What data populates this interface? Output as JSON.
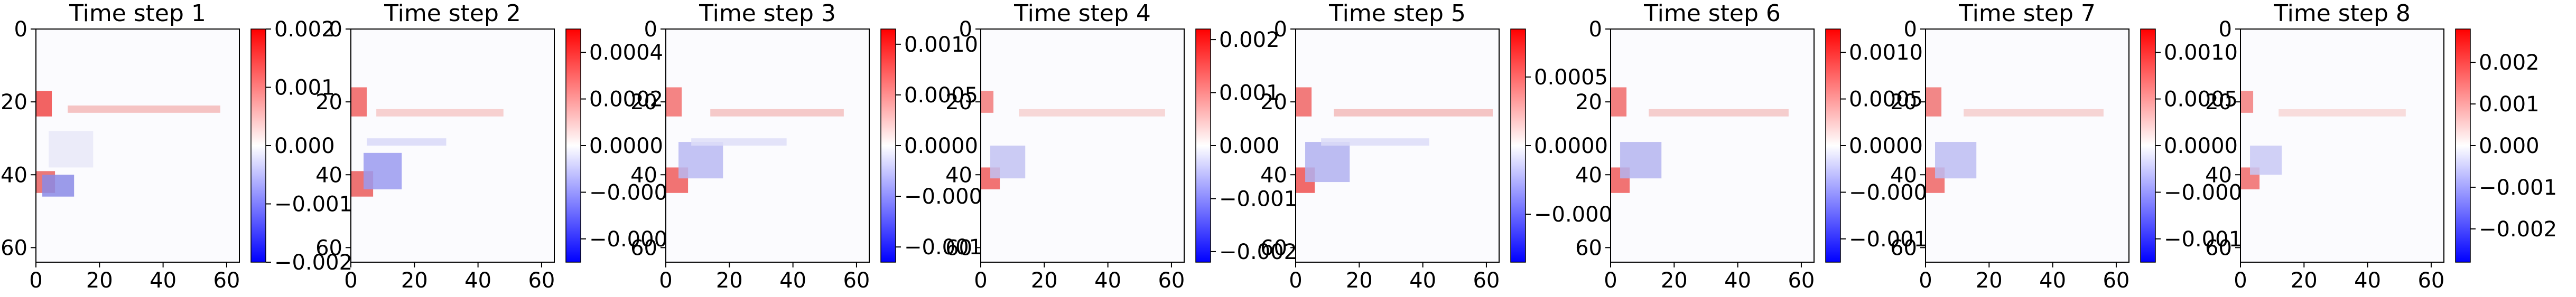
{
  "chart_data": [
    {
      "type": "heatmap",
      "title": "Time step 1",
      "xticks": [
        0,
        20,
        40,
        60
      ],
      "yticks": [
        0,
        20,
        40,
        60
      ],
      "xlim": [
        0,
        64
      ],
      "ylim": [
        64,
        0
      ],
      "colorbar": {
        "range": [
          -0.002,
          0.002
        ],
        "ticks": [
          -0.002,
          -0.001,
          0.0,
          0.001,
          0.002
        ],
        "tick_labels": [
          "−0.002",
          "−0.001",
          "0.000",
          "0.001",
          "0.002"
        ]
      },
      "colormap": [
        "#0000ff",
        "#ffffff",
        "#ff0000"
      ]
    },
    {
      "type": "heatmap",
      "title": "Time step 2",
      "xticks": [
        0,
        20,
        40,
        60
      ],
      "yticks": [
        0,
        20,
        40,
        60
      ],
      "xlim": [
        0,
        64
      ],
      "ylim": [
        64,
        0
      ],
      "colorbar": {
        "range": [
          -0.0005,
          0.0005
        ],
        "ticks": [
          -0.0004,
          -0.0002,
          0.0,
          0.0002,
          0.0004
        ],
        "tick_labels": [
          "−0.0004",
          "−0.0002",
          "0.0000",
          "0.0002",
          "0.0004"
        ]
      },
      "colormap": [
        "#0000ff",
        "#ffffff",
        "#ff0000"
      ]
    },
    {
      "type": "heatmap",
      "title": "Time step 3",
      "xticks": [
        0,
        20,
        40,
        60
      ],
      "yticks": [
        0,
        20,
        40,
        60
      ],
      "xlim": [
        0,
        64
      ],
      "ylim": [
        64,
        0
      ],
      "colorbar": {
        "range": [
          -0.00115,
          0.00115
        ],
        "ticks": [
          -0.001,
          -0.0005,
          0.0,
          0.0005,
          0.001
        ],
        "tick_labels": [
          "−0.0010",
          "−0.0005",
          "0.0000",
          "0.0005",
          "0.0010"
        ]
      },
      "colormap": [
        "#0000ff",
        "#ffffff",
        "#ff0000"
      ]
    },
    {
      "type": "heatmap",
      "title": "Time step 4",
      "xticks": [
        0,
        20,
        40,
        60
      ],
      "yticks": [
        0,
        20,
        40,
        60
      ],
      "xlim": [
        0,
        64
      ],
      "ylim": [
        64,
        0
      ],
      "colorbar": {
        "range": [
          -0.0022,
          0.0022
        ],
        "ticks": [
          -0.002,
          -0.001,
          0.0,
          0.001,
          0.002
        ],
        "tick_labels": [
          "−0.002",
          "−0.001",
          "0.000",
          "0.001",
          "0.002"
        ]
      },
      "colormap": [
        "#0000ff",
        "#ffffff",
        "#ff0000"
      ]
    },
    {
      "type": "heatmap",
      "title": "Time step 5",
      "xticks": [
        0,
        20,
        40,
        60
      ],
      "yticks": [
        0,
        20,
        40,
        60
      ],
      "xlim": [
        0,
        64
      ],
      "ylim": [
        64,
        0
      ],
      "colorbar": {
        "range": [
          -0.00085,
          0.00085
        ],
        "ticks": [
          -0.0005,
          0.0,
          0.0005
        ],
        "tick_labels": [
          "−0.0005",
          "0.0000",
          "0.0005"
        ]
      },
      "colormap": [
        "#0000ff",
        "#ffffff",
        "#ff0000"
      ]
    },
    {
      "type": "heatmap",
      "title": "Time step 6",
      "xticks": [
        0,
        20,
        40,
        60
      ],
      "yticks": [
        0,
        20,
        40,
        60
      ],
      "xlim": [
        0,
        64
      ],
      "ylim": [
        64,
        0
      ],
      "colorbar": {
        "range": [
          -0.00125,
          0.00125
        ],
        "ticks": [
          -0.001,
          -0.0005,
          0.0,
          0.0005,
          0.001
        ],
        "tick_labels": [
          "−0.0010",
          "−0.0005",
          "0.0000",
          "0.0005",
          "0.0010"
        ]
      },
      "colormap": [
        "#0000ff",
        "#ffffff",
        "#ff0000"
      ]
    },
    {
      "type": "heatmap",
      "title": "Time step 7",
      "xticks": [
        0,
        20,
        40,
        60
      ],
      "yticks": [
        0,
        20,
        40,
        60
      ],
      "xlim": [
        0,
        64
      ],
      "ylim": [
        64,
        0
      ],
      "colorbar": {
        "range": [
          -0.00125,
          0.00125
        ],
        "ticks": [
          -0.001,
          -0.0005,
          0.0,
          0.0005,
          0.001
        ],
        "tick_labels": [
          "−0.0010",
          "−0.0005",
          "0.0000",
          "0.0005",
          "0.0010"
        ]
      },
      "colormap": [
        "#0000ff",
        "#ffffff",
        "#ff0000"
      ]
    },
    {
      "type": "heatmap",
      "title": "Time step 8",
      "xticks": [
        0,
        20,
        40,
        60
      ],
      "yticks": [
        0,
        20,
        40,
        60
      ],
      "xlim": [
        0,
        64
      ],
      "ylim": [
        64,
        0
      ],
      "colorbar": {
        "range": [
          -0.0028,
          0.0028
        ],
        "ticks": [
          -0.002,
          -0.001,
          0.0,
          0.001,
          0.002
        ],
        "tick_labels": [
          "−0.002",
          "−0.001",
          "0.000",
          "0.001",
          "0.002"
        ]
      },
      "colormap": [
        "#0000ff",
        "#ffffff",
        "#ff0000"
      ]
    }
  ]
}
